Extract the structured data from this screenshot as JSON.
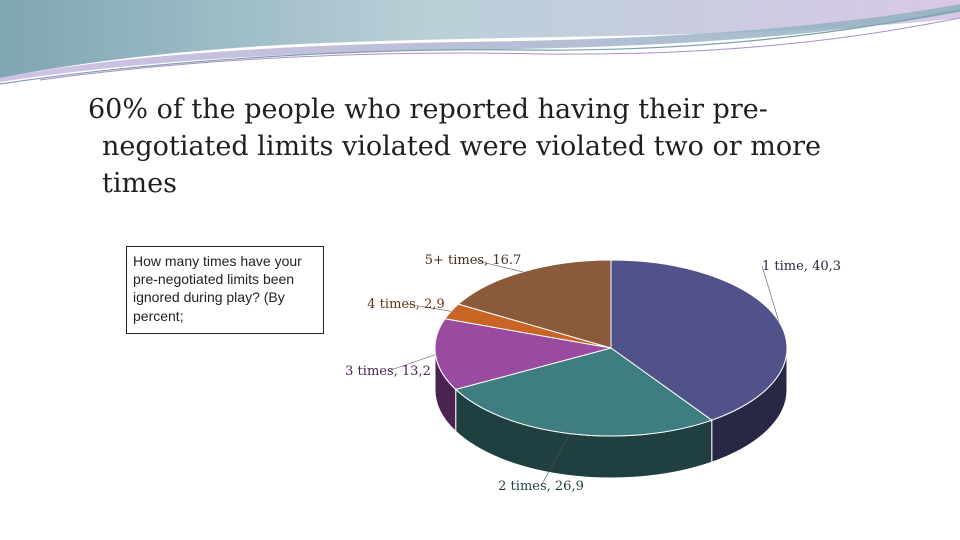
{
  "slide": {
    "title": "60% of the people who reported having their pre-negotiated limits violated were violated two or more times"
  },
  "question_box": {
    "text": "How many times have your pre-negotiated limits been ignored during play? (By percent;"
  },
  "chart_data": {
    "type": "pie",
    "style": "3d",
    "title": "",
    "categories": [
      "1 time",
      "2 times",
      "3 times",
      "4 times",
      "5+ times"
    ],
    "values": [
      40.3,
      26.9,
      13.2,
      2.9,
      16.7
    ],
    "data_labels": [
      "1 time, 40,3",
      "2 times, 26,9",
      "3 times, 13,2",
      "4 times, 2,9",
      "5+ times, 16.7"
    ],
    "colors": [
      "#52528a",
      "#3e7e80",
      "#9b4b9f",
      "#c86524",
      "#8a5a3a"
    ],
    "side_colors": [
      "#282846",
      "#1f3f40",
      "#4a2450",
      "#6a3412",
      "#45301e"
    ]
  }
}
